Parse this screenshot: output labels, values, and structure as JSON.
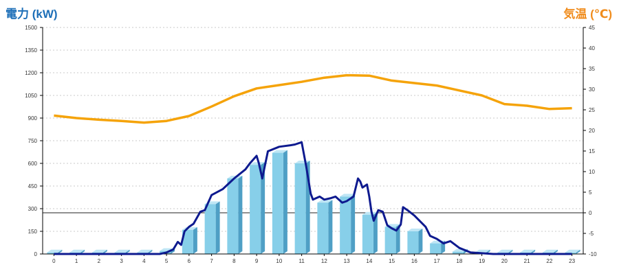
{
  "chart_data": {
    "type": "bar",
    "title_left": "電力 (kW)",
    "title_right": "気温 (℃)",
    "colors": {
      "title_left": "#1d6fb8",
      "title_right": "#f08c1c",
      "bar": "#87cfe9",
      "bar_side": "#4f9fc5",
      "bar_top": "#bfe6f5",
      "line_power": "#0e1a8f",
      "line_temp": "#f5a30a",
      "grid": "#c8c8c8",
      "axis": "#000000"
    },
    "grid": true,
    "x": [
      "0",
      "1",
      "2",
      "3",
      "4",
      "5",
      "6",
      "7",
      "8",
      "9",
      "10",
      "11",
      "12",
      "13",
      "14",
      "15",
      "16",
      "17",
      "18",
      "19",
      "20",
      "21",
      "22",
      "23"
    ],
    "y_left": {
      "ylim": [
        0,
        1500
      ],
      "ticks": [
        "0",
        "150",
        "300",
        "450",
        "600",
        "750",
        "900",
        "1050",
        "1200",
        "1350",
        "1500"
      ]
    },
    "y_right": {
      "ylim": [
        -10,
        45
      ],
      "ticks": [
        "-10",
        "-5",
        "0",
        "5",
        "10",
        "15",
        "20",
        "25",
        "30",
        "35",
        "40",
        "45"
      ]
    },
    "series": [
      {
        "kind": "bar",
        "axis": "left",
        "values": [
          10,
          10,
          10,
          10,
          10,
          20,
          160,
          330,
          500,
          590,
          670,
          600,
          340,
          380,
          260,
          180,
          150,
          70,
          15,
          10,
          10,
          10,
          10,
          10
        ]
      },
      {
        "kind": "line",
        "axis": "left",
        "points": [
          [
            0,
            0
          ],
          [
            1,
            0
          ],
          [
            2,
            0
          ],
          [
            3,
            0
          ],
          [
            4,
            0
          ],
          [
            4.7,
            0
          ],
          [
            5,
            10
          ],
          [
            5.3,
            30
          ],
          [
            5.5,
            80
          ],
          [
            5.65,
            60
          ],
          [
            5.8,
            150
          ],
          [
            6,
            180
          ],
          [
            6.2,
            200
          ],
          [
            6.5,
            280
          ],
          [
            6.7,
            290
          ],
          [
            7,
            390
          ],
          [
            7.5,
            430
          ],
          [
            8,
            500
          ],
          [
            8.5,
            560
          ],
          [
            8.7,
            600
          ],
          [
            9,
            650
          ],
          [
            9.1,
            600
          ],
          [
            9.25,
            500
          ],
          [
            9.5,
            680
          ],
          [
            10,
            710
          ],
          [
            10.5,
            720
          ],
          [
            10.7,
            725
          ],
          [
            11,
            740
          ],
          [
            11.2,
            580
          ],
          [
            11.4,
            400
          ],
          [
            11.5,
            360
          ],
          [
            11.8,
            380
          ],
          [
            12,
            360
          ],
          [
            12.3,
            370
          ],
          [
            12.5,
            380
          ],
          [
            12.8,
            340
          ],
          [
            13,
            350
          ],
          [
            13.3,
            380
          ],
          [
            13.5,
            500
          ],
          [
            13.6,
            480
          ],
          [
            13.7,
            440
          ],
          [
            13.9,
            460
          ],
          [
            14,
            380
          ],
          [
            14.1,
            280
          ],
          [
            14.2,
            220
          ],
          [
            14.4,
            290
          ],
          [
            14.6,
            280
          ],
          [
            14.8,
            190
          ],
          [
            15,
            170
          ],
          [
            15.2,
            155
          ],
          [
            15.4,
            195
          ],
          [
            15.5,
            310
          ],
          [
            15.7,
            290
          ],
          [
            16,
            255
          ],
          [
            16.3,
            210
          ],
          [
            16.5,
            180
          ],
          [
            16.7,
            120
          ],
          [
            17,
            100
          ],
          [
            17.3,
            70
          ],
          [
            17.6,
            85
          ],
          [
            18,
            40
          ],
          [
            18.5,
            10
          ],
          [
            19,
            5
          ],
          [
            19.5,
            0
          ],
          [
            20,
            0
          ],
          [
            21,
            0
          ],
          [
            22,
            0
          ],
          [
            23,
            0
          ]
        ]
      },
      {
        "kind": "line",
        "axis": "right",
        "points": [
          [
            0,
            23.6
          ],
          [
            1,
            23.0
          ],
          [
            2,
            22.6
          ],
          [
            3,
            22.3
          ],
          [
            4,
            21.9
          ],
          [
            5,
            22.3
          ],
          [
            6,
            23.5
          ],
          [
            7,
            25.8
          ],
          [
            8,
            28.3
          ],
          [
            9,
            30.2
          ],
          [
            10,
            31.0
          ],
          [
            11,
            31.8
          ],
          [
            12,
            32.8
          ],
          [
            13,
            33.4
          ],
          [
            14,
            33.3
          ],
          [
            15,
            32.1
          ],
          [
            16,
            31.5
          ],
          [
            17,
            30.9
          ],
          [
            18,
            29.7
          ],
          [
            19,
            28.5
          ],
          [
            20,
            26.4
          ],
          [
            21,
            26.0
          ],
          [
            22,
            25.2
          ],
          [
            23,
            25.4
          ]
        ]
      }
    ]
  }
}
